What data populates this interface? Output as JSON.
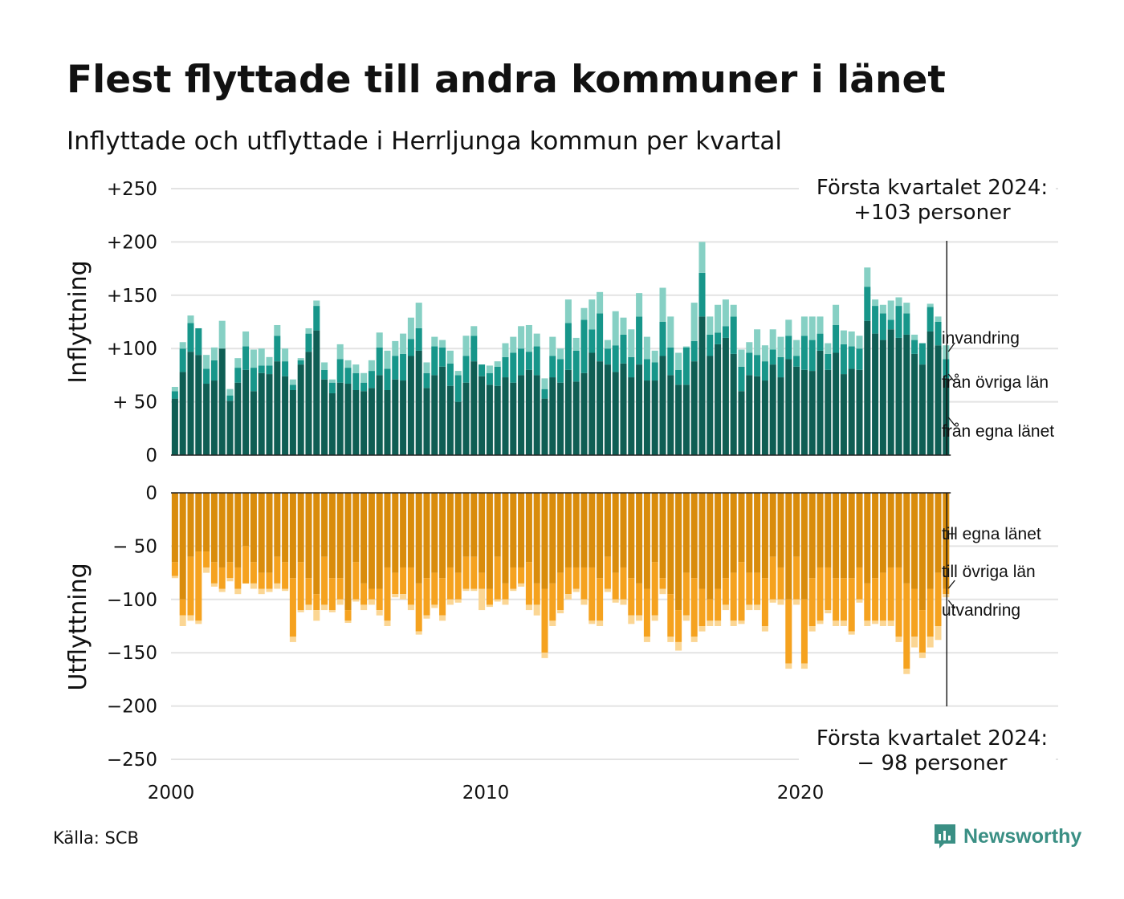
{
  "title": "Flest flyttade till andra kommuner i länet",
  "subtitle": "Inflyttade och utflyttade i Herrljunga kommun per kvartal",
  "source": "Källa: SCB",
  "brand": "Newsworthy",
  "colors": {
    "in_own": "#0f5e54",
    "in_other": "#17968a",
    "in_immig": "#86d0c4",
    "out_own": "#d98c0c",
    "out_other": "#f5a21f",
    "out_emig": "#fbd694",
    "grid": "#e3e3e3"
  },
  "callouts": {
    "top": {
      "line1": "Första kvartalet 2024:",
      "line2": "+103 personer"
    },
    "bottom": {
      "line1": "Första kvartalet 2024:",
      "line2": "− 98 personer"
    }
  },
  "series_labels": {
    "in": [
      "invandring",
      "från övriga län",
      "från egna länet"
    ],
    "out": [
      "till egna länet",
      "till övriga län",
      "utvandring"
    ]
  },
  "chart_data": {
    "type": "bar",
    "stacked": true,
    "x_start": "2000 Q1",
    "x_end": "2024 Q1",
    "x_ticks": [
      {
        "value": 2000,
        "label": "2000"
      },
      {
        "value": 2010,
        "label": "2010"
      },
      {
        "value": 2020,
        "label": "2020"
      }
    ],
    "panels": [
      {
        "name": "Inflyttning",
        "ylabel": "Inflyttning",
        "ylim": [
          0,
          250
        ],
        "y_ticks": [
          {
            "value": 0,
            "label": "0"
          },
          {
            "value": 50,
            "label": "+ 50"
          },
          {
            "value": 100,
            "label": "+100"
          },
          {
            "value": 150,
            "label": "+150"
          },
          {
            "value": 200,
            "label": "+200"
          },
          {
            "value": 250,
            "label": "+250"
          }
        ],
        "series": [
          {
            "name": "från egna länet",
            "values": [
              53,
              78,
              97,
              94,
              67,
              70,
              100,
              51,
              68,
              80,
              60,
              77,
              76,
              88,
              74,
              61,
              85,
              97,
              117,
              71,
              58,
              68,
              67,
              61,
              60,
              63,
              75,
              61,
              71,
              70,
              93,
              98,
              63,
              75,
              83,
              65,
              50,
              68,
              88,
              74,
              66,
              65,
              73,
              68,
              75,
              80,
              75,
              53,
              73,
              68,
              80,
              69,
              77,
              96,
              88,
              85,
              78,
              86,
              73,
              85,
              70,
              70,
              93,
              75,
              66,
              66,
              88,
              130,
              93,
              104,
              110,
              95,
              60,
              75,
              74,
              70,
              85,
              73,
              90,
              83,
              80,
              79,
              98,
              80,
              96,
              76,
              81,
              80,
              126,
              114,
              108,
              118,
              110,
              113,
              95,
              85,
              116,
              103,
              72
            ]
          },
          {
            "name": "från övriga län",
            "values": [
              7,
              22,
              27,
              25,
              14,
              19,
              0,
              5,
              14,
              22,
              22,
              7,
              8,
              24,
              14,
              5,
              4,
              17,
              23,
              9,
              10,
              22,
              15,
              16,
              8,
              16,
              26,
              20,
              22,
              25,
              16,
              21,
              14,
              27,
              18,
              21,
              25,
              25,
              24,
              11,
              11,
              18,
              19,
              28,
              25,
              17,
              27,
              9,
              20,
              22,
              44,
              29,
              50,
              22,
              45,
              15,
              25,
              27,
              19,
              45,
              20,
              17,
              32,
              26,
              14,
              35,
              19,
              41,
              20,
              11,
              11,
              35,
              23,
              21,
              20,
              18,
              14,
              19,
              22,
              10,
              32,
              29,
              16,
              15,
              26,
              28,
              21,
              20,
              32,
              26,
              25,
              9,
              30,
              20,
              13,
              20,
              23,
              22,
              18
            ]
          },
          {
            "name": "invandring",
            "values": [
              4,
              6,
              7,
              0,
              13,
              12,
              26,
              6,
              9,
              14,
              17,
              16,
              8,
              10,
              12,
              5,
              2,
              5,
              5,
              7,
              3,
              14,
              7,
              8,
              9,
              10,
              14,
              17,
              14,
              19,
              20,
              24,
              10,
              9,
              7,
              12,
              4,
              19,
              9,
              0,
              7,
              5,
              13,
              15,
              21,
              25,
              12,
              10,
              18,
              10,
              22,
              12,
              11,
              28,
              20,
              8,
              32,
              16,
              26,
              22,
              21,
              11,
              32,
              29,
              16,
              1,
              36,
              29,
              17,
              26,
              25,
              11,
              16,
              10,
              24,
              15,
              19,
              19,
              15,
              15,
              18,
              22,
              16,
              10,
              19,
              13,
              14,
              12,
              18,
              6,
              8,
              18,
              8,
              10,
              5,
              0,
              3,
              5,
              13
            ]
          }
        ]
      },
      {
        "name": "Utflyttning",
        "ylabel": "Utflyttning",
        "ylim": [
          -250,
          0
        ],
        "y_ticks": [
          {
            "value": 0,
            "label": "0"
          },
          {
            "value": -50,
            "label": "− 50"
          },
          {
            "value": -100,
            "label": "−100"
          },
          {
            "value": -150,
            "label": "−150"
          },
          {
            "value": -200,
            "label": "−200"
          },
          {
            "value": -250,
            "label": "−250"
          }
        ],
        "series": [
          {
            "name": "till egna länet",
            "values": [
              -65,
              -100,
              -60,
              -55,
              -55,
              -65,
              -70,
              -65,
              -70,
              -50,
              -65,
              -75,
              -75,
              -60,
              -65,
              -80,
              -65,
              -80,
              -95,
              -60,
              -80,
              -80,
              -110,
              -65,
              -85,
              -90,
              -90,
              -70,
              -75,
              -70,
              -70,
              -85,
              -80,
              -75,
              -80,
              -70,
              -75,
              -60,
              -60,
              -75,
              -90,
              -60,
              -85,
              -70,
              -70,
              -65,
              -85,
              -90,
              -85,
              -75,
              -70,
              -70,
              -70,
              -70,
              -80,
              -60,
              -75,
              -70,
              -80,
              -85,
              -90,
              -65,
              -80,
              -95,
              -110,
              -75,
              -80,
              -90,
              -100,
              -90,
              -80,
              -75,
              -65,
              -75,
              -75,
              -80,
              -60,
              -70,
              -100,
              -60,
              -100,
              -80,
              -70,
              -70,
              -80,
              -80,
              -80,
              -70,
              -85,
              -80,
              -75,
              -70,
              -70,
              -85,
              -90,
              -110,
              -90,
              -75,
              -90
            ]
          },
          {
            "name": "till övriga län",
            "values": [
              -13,
              -15,
              -55,
              -65,
              -15,
              -20,
              -20,
              -15,
              -20,
              -35,
              -20,
              -15,
              -15,
              -25,
              -25,
              -55,
              -45,
              -25,
              -15,
              -45,
              -30,
              -20,
              -10,
              -35,
              -20,
              -10,
              -20,
              -50,
              -20,
              -25,
              -35,
              -45,
              -35,
              -30,
              -35,
              -30,
              -25,
              -30,
              -30,
              -15,
              -15,
              -40,
              -15,
              -20,
              -15,
              -40,
              -20,
              -60,
              -35,
              -35,
              -25,
              -20,
              -30,
              -50,
              -40,
              -30,
              -25,
              -30,
              -35,
              -30,
              -45,
              -50,
              -10,
              -40,
              -30,
              -40,
              -55,
              -35,
              -20,
              -30,
              -25,
              -45,
              -55,
              -30,
              -30,
              -45,
              -40,
              -30,
              -60,
              -40,
              -60,
              -45,
              -50,
              -40,
              -40,
              -40,
              -50,
              -30,
              -35,
              -40,
              -45,
              -50,
              -65,
              -80,
              -45,
              -40,
              -45,
              -50,
              -5
            ]
          },
          {
            "name": "utvandring",
            "values": [
              -2,
              -10,
              -5,
              -3,
              -5,
              -3,
              -3,
              -3,
              -5,
              0,
              -5,
              -5,
              -3,
              -5,
              -2,
              -5,
              -2,
              -5,
              -10,
              -5,
              -2,
              -5,
              -2,
              -2,
              -5,
              -5,
              -5,
              -5,
              -3,
              -5,
              -5,
              -3,
              -3,
              -3,
              -5,
              -5,
              -3,
              -2,
              -2,
              -20,
              -2,
              -2,
              -5,
              -2,
              -3,
              -5,
              -10,
              -5,
              -5,
              -3,
              -5,
              -3,
              -5,
              -3,
              -5,
              -3,
              -3,
              -5,
              -8,
              -5,
              -5,
              -5,
              -5,
              -5,
              -8,
              -5,
              -5,
              -5,
              -5,
              -5,
              -5,
              -5,
              -3,
              -5,
              -5,
              -5,
              -3,
              -5,
              -5,
              -5,
              -5,
              -5,
              -3,
              -3,
              -5,
              -5,
              -3,
              -3,
              -5,
              -3,
              -5,
              -5,
              -5,
              -5,
              -10,
              -5,
              -10,
              -13,
              -3
            ]
          }
        ]
      }
    ]
  }
}
